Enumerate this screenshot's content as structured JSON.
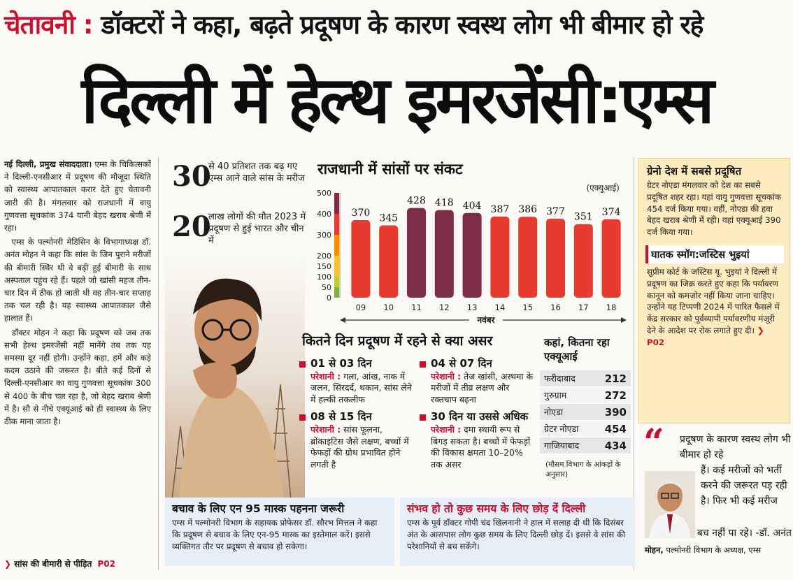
{
  "kicker": {
    "label": "चेतावनी :",
    "text": "डॉक्टरों ने कहा, बढ़ते प्रदूषण के कारण स्वस्थ लोग भी बीमार हो रहे"
  },
  "headline": "दिल्ली में हेल्थ इमरजेंसी:एम्स",
  "left_column": {
    "dateline": "नई दिल्ली, प्रमुख संवाददाता।",
    "p1": "एम्स के चिकित्सकों ने दिल्ली-एनसीआर में प्रदूषण की मौजूदा स्थिति को स्वास्थ्य आपातकाल करार देते हुए चेतावनी जारी की है। मंगलवार को राजधानी में वायु गुणवत्ता सूचकांक 374 यानी बेहद खराब श्रेणी में रहा।",
    "p2": "एम्स के पल्मोनरी मेडिसिन के विभागाध्यक्ष डॉ. अनंत मोहन ने कहा कि सांस के जिन पुराने मरीजों की बीमारी स्थिर थी वे बढ़ी हुई बीमारी के साथ अस्पताल पहुंच रहे हैं। पहले जो खांसी महज तीन-चार दिन में ठीक हो जाती थी वह तीन-चार सप्ताह तक चल रही है। यह स्वास्थ्य आपातकाल जैसे हालात हैं।",
    "p3": "डॉक्टर मोहन ने कहा कि प्रदूषण को जब तक सभी हेल्थ इमरजेंसी नहीं मानेंगे तब तक यह समस्या दूर नहीं होगी। उन्होंने कहा, हमें और कड़े कदम उठाने की जरूरत है। बीते कई दिनों से दिल्ली-एनसीआर का वायु गुणवत्ता सूचकांक 300 से 400 के बीच चल रहा है, जो बेहद खराब श्रेणी में है। सौ से नीचे एक्यूआई को ही स्वास्थ्य के लिए ठीक माना जाता है।",
    "more": "सांस की बीमारी से पीड़ित",
    "more_page": "P02"
  },
  "stats": [
    {
      "number": "30",
      "text": "से 40 प्रतिशत तक बढ़ गए एम्स आने वाले सांस के मरीज"
    },
    {
      "number": "20",
      "text": "लाख लोगों की मौत 2023 में प्रदूषण से हुई भारत और चीन में"
    }
  ],
  "chart_title": "राजधानी में सांसों पर संकट",
  "chart_data": {
    "type": "bar",
    "title": "राजधानी में सांसों पर संकट",
    "unit_label": "(एक्यूआई)",
    "xlabel": "नवंबर",
    "ylabel": "",
    "categories": [
      "09",
      "10",
      "11",
      "12",
      "13",
      "14",
      "15",
      "16",
      "17",
      "18"
    ],
    "values": [
      370,
      345,
      428,
      418,
      404,
      387,
      386,
      377,
      351,
      374
    ],
    "ylim": [
      0,
      500
    ],
    "yticks": [
      0,
      50,
      100,
      150,
      200,
      300,
      400,
      500
    ],
    "highlight_categories": [
      "11",
      "12",
      "13"
    ],
    "colors": {
      "bar": "#e63b2e",
      "highlight": "#7e2d48"
    }
  },
  "impact": {
    "title": "कितने दिन प्रदूषण में रहने से क्या असर",
    "items": [
      {
        "heading": "01 से 03 दिन",
        "label": "परेशानी :",
        "text": "गला, आंख, नाक में जलन, सिरदर्द, थकान, सांस लेने में हल्की तकलीफ"
      },
      {
        "heading": "04 से 07 दिन",
        "label": "परेशानी :",
        "text": "तेज खांसी, अस्थमा के मरीजों में तीव्र लक्षण और रक्तचाप बढ़ना"
      },
      {
        "heading": "08 से 15 दिन",
        "label": "परेशानी :",
        "text": "सांस फूलना, ब्रोंकाइटिस जैसे लक्षण, बच्चों में फेफड़ों की ग्रोथ प्रभावित होने लगती है"
      },
      {
        "heading": "30 दिन या उससे अधिक",
        "label": "परेशानी :",
        "text": "दमा स्थायी रूप से बिगड़ सकता है। बच्चों में फेफड़ों की विकास क्षमता 10–20% तक असर"
      }
    ]
  },
  "aqi_table": {
    "title": "कहां, कितना रहा एक्यूआई",
    "rows": [
      {
        "city": "फरीदाबाद",
        "value": "212"
      },
      {
        "city": "गुरुग्राम",
        "value": "272"
      },
      {
        "city": "नोएडा",
        "value": "390"
      },
      {
        "city": "ग्रेटर नोएडा",
        "value": "454"
      },
      {
        "city": "गाजियाबाद",
        "value": "434"
      }
    ],
    "note": "(मौसम विभाग के आंकड़ों के अनुसार)"
  },
  "right_box": {
    "title": "ग्रेनो देश में सबसे प्रदूषित",
    "body": "ग्रेटर नोएडा मंगलवार को देश का सबसे प्रदूषित शहर रहा। यहां वायु गुणवत्ता सूचकांक 454 दर्ज किया गया। वहीं, नोएडा की हवा बेहद खराब श्रेणी में रही। यहां एक्यूआई 390 दर्ज किया गया।",
    "title2": "घातक स्मॉग:जस्टिस भुइयां",
    "body2": "सुप्रीम कोर्ट के जस्टिस यू. भुइयां ने दिल्ली में प्रदूषण का जिक्र करते हुए कहा कि पर्यावरण कानून को कमजोर नहीं किया जाना चाहिए। उन्होंने यह टिप्पणी 2024 में पारित फैसले में केंद्र सरकार को पूर्वव्यापी पर्यावरणीय मंजूरी देने के आदेश पर रोक लगाते हुए दी।",
    "page": "P02"
  },
  "quote": {
    "line1": "प्रदूषण के कारण स्वस्थ लोग भी बीमार हो रहे",
    "line2": "हैं। कई मरीजों को भर्ती करने की जरूरत पड़ रही है। फिर भी कई मरीज",
    "line3": "बच नहीं पा रहे। -डॉ. अनंत",
    "name_bold": "मोहन,",
    "designation": "पल्मोनरी विभाग के अध्यक्ष, एम्स"
  },
  "bottom_left": {
    "title": "बचाव के लिए एन 95 मास्क पहनना जरूरी",
    "body": "एम्स में पल्मोनरी विभाग के सहायक प्रोफेसर डॉ. सौरभ मित्तल ने कहा कि प्रदूषण से बचाव के लिए एन-95 मास्क का इस्तेमाल करें। इससे व्यक्तिगत तौर पर प्रदूषण से बचाव हो सकेगा।"
  },
  "bottom_right": {
    "title": "संभव हो तो कुछ समय के लिए छोड़ दें दिल्ली",
    "body": "एम्स के पूर्व डॉक्टर गोपी चंद खिलनानी ने हाल में सलाह दी थी कि दिसंबर अंत के आसपास लोग कुछ समय के लिए दिल्ली छोड़ दें। इससे वे सांस की परेशानियों से बच सकेंगे।"
  }
}
